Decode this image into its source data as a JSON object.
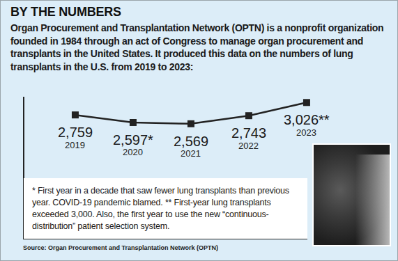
{
  "chart_data": {
    "type": "line",
    "title": "BY THE NUMBERS",
    "subtitle": "Organ Procurement and Transplantation Network (OPTN) is a nonprofit organization founded in 1984 through an act of Congress to manage organ procurement and transplants in the United States. It produced this data on the numbers of lung transplants in the U.S. from 2019 to 2023:",
    "categories": [
      "2019",
      "2020",
      "2021",
      "2022",
      "2023"
    ],
    "values": [
      2759,
      2597,
      2569,
      2743,
      3026
    ],
    "value_labels": [
      "2,759",
      "2,597*",
      "2,569",
      "2,743",
      "3,026**"
    ],
    "data_labels": true,
    "color": "#222222",
    "marker": "square",
    "line_style": "solid",
    "ylim": [
      1400,
      3150
    ],
    "yticks": [],
    "grid": false,
    "tick_labels": false,
    "annotations": [
      "* First year in a decade that saw fewer lung transplants than previous year. COVID-19 pandemic blamed. ** First-year lung transplants exceeded 3,000. Also, the first year to use the new “continuous-distribution” patient selection system.",
      "Source: Organ Procurement and Transplantation Network (OPTN)"
    ]
  }
}
